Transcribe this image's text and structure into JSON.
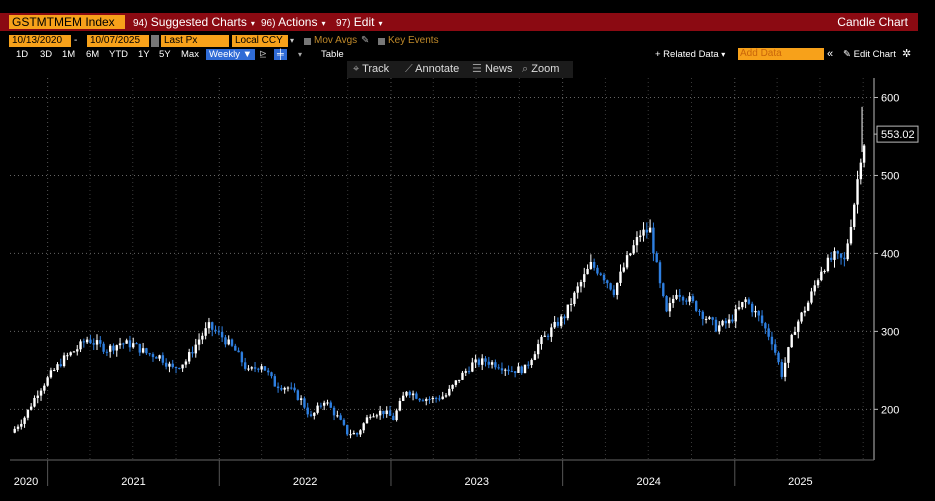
{
  "header": {
    "ticker": "GSTMTMEM Index",
    "menus": [
      {
        "num": "94)",
        "label": "Suggested Charts"
      },
      {
        "num": "96)",
        "label": "Actions"
      },
      {
        "num": "97)",
        "label": "Edit"
      }
    ],
    "chart_title": "Candle Chart"
  },
  "controls": {
    "start_date": "10/13/2020",
    "end_date": "10/07/2025",
    "price_field": "Last Px",
    "currency": "Local CCY",
    "mov_avgs": "Mov Avgs",
    "key_events": "Key Events",
    "periods": [
      "1D",
      "3D",
      "1M",
      "6M",
      "YTD",
      "1Y",
      "5Y",
      "Max"
    ],
    "frequency": "Weekly",
    "table_label": "Table",
    "related_data": "+ Related Data",
    "add_data_placeholder": "Add Data",
    "edit_chart": "Edit Chart"
  },
  "toolbar": {
    "track": "Track",
    "annotate": "Annotate",
    "news": "News",
    "zoom": "Zoom"
  },
  "colors": {
    "up": "#ffffff",
    "down": "#2e7fe0",
    "bar": "#8b0a12",
    "accent": "#f7a11a"
  },
  "chart_data": {
    "type": "candlestick",
    "title": "",
    "xlabel": "",
    "ylabel": "",
    "last_value_label": "553.02",
    "y_ticks": [
      200,
      300,
      400,
      500,
      600
    ],
    "ylim": [
      135,
      625
    ],
    "x_ticks": [
      "2020",
      "2021",
      "2022",
      "2023",
      "2024",
      "2025"
    ],
    "xlim": [
      "2020-10-13",
      "2025-10-07"
    ],
    "grid": true,
    "frequency": "weekly",
    "series": [
      {
        "points": [
          [
            "2020-10-16",
            170
          ],
          [
            "2020-11-13",
            190
          ],
          [
            "2020-12-11",
            222
          ],
          [
            "2021-01-08",
            245
          ],
          [
            "2021-02-05",
            265
          ],
          [
            "2021-03-05",
            278
          ],
          [
            "2021-03-26",
            290
          ],
          [
            "2021-05-07",
            277
          ],
          [
            "2021-06-04",
            285
          ],
          [
            "2021-07-02",
            283
          ],
          [
            "2021-07-30",
            272
          ],
          [
            "2021-08-27",
            268
          ],
          [
            "2021-09-24",
            252
          ],
          [
            "2021-10-22",
            262
          ],
          [
            "2021-11-19",
            290
          ],
          [
            "2021-12-10",
            306
          ],
          [
            "2022-01-07",
            293
          ],
          [
            "2022-02-04",
            275
          ],
          [
            "2022-03-04",
            248
          ],
          [
            "2022-04-01",
            258
          ],
          [
            "2022-04-29",
            232
          ],
          [
            "2022-05-27",
            228
          ],
          [
            "2022-06-24",
            212
          ],
          [
            "2022-07-15",
            189
          ],
          [
            "2022-08-12",
            212
          ],
          [
            "2022-09-09",
            190
          ],
          [
            "2022-09-30",
            170
          ],
          [
            "2022-10-21",
            168
          ],
          [
            "2022-11-18",
            195
          ],
          [
            "2022-12-16",
            197
          ],
          [
            "2023-01-06",
            188
          ],
          [
            "2023-02-03",
            225
          ],
          [
            "2023-03-03",
            215
          ],
          [
            "2023-03-31",
            213
          ],
          [
            "2023-04-28",
            218
          ],
          [
            "2023-05-26",
            240
          ],
          [
            "2023-06-23",
            258
          ],
          [
            "2023-07-21",
            262
          ],
          [
            "2023-08-18",
            257
          ],
          [
            "2023-09-15",
            250
          ],
          [
            "2023-10-13",
            252
          ],
          [
            "2023-11-10",
            283
          ],
          [
            "2023-12-08",
            302
          ],
          [
            "2024-01-05",
            320
          ],
          [
            "2024-02-02",
            355
          ],
          [
            "2024-03-01",
            385
          ],
          [
            "2024-03-22",
            376
          ],
          [
            "2024-04-19",
            352
          ],
          [
            "2024-05-17",
            392
          ],
          [
            "2024-06-14",
            425
          ],
          [
            "2024-07-05",
            430
          ],
          [
            "2024-07-26",
            358
          ],
          [
            "2024-08-09",
            322
          ],
          [
            "2024-08-30",
            352
          ],
          [
            "2024-09-27",
            340
          ],
          [
            "2024-10-25",
            322
          ],
          [
            "2024-11-22",
            305
          ],
          [
            "2024-12-20",
            312
          ],
          [
            "2025-01-24",
            340
          ],
          [
            "2025-02-21",
            318
          ],
          [
            "2025-03-21",
            288
          ],
          [
            "2025-04-11",
            245
          ],
          [
            "2025-05-09",
            305
          ],
          [
            "2025-06-06",
            337
          ],
          [
            "2025-07-04",
            380
          ],
          [
            "2025-08-01",
            396
          ],
          [
            "2025-08-22",
            390
          ],
          [
            "2025-09-12",
            465
          ],
          [
            "2025-09-26",
            525
          ],
          [
            "2025-10-07",
            553.02
          ]
        ]
      }
    ]
  }
}
